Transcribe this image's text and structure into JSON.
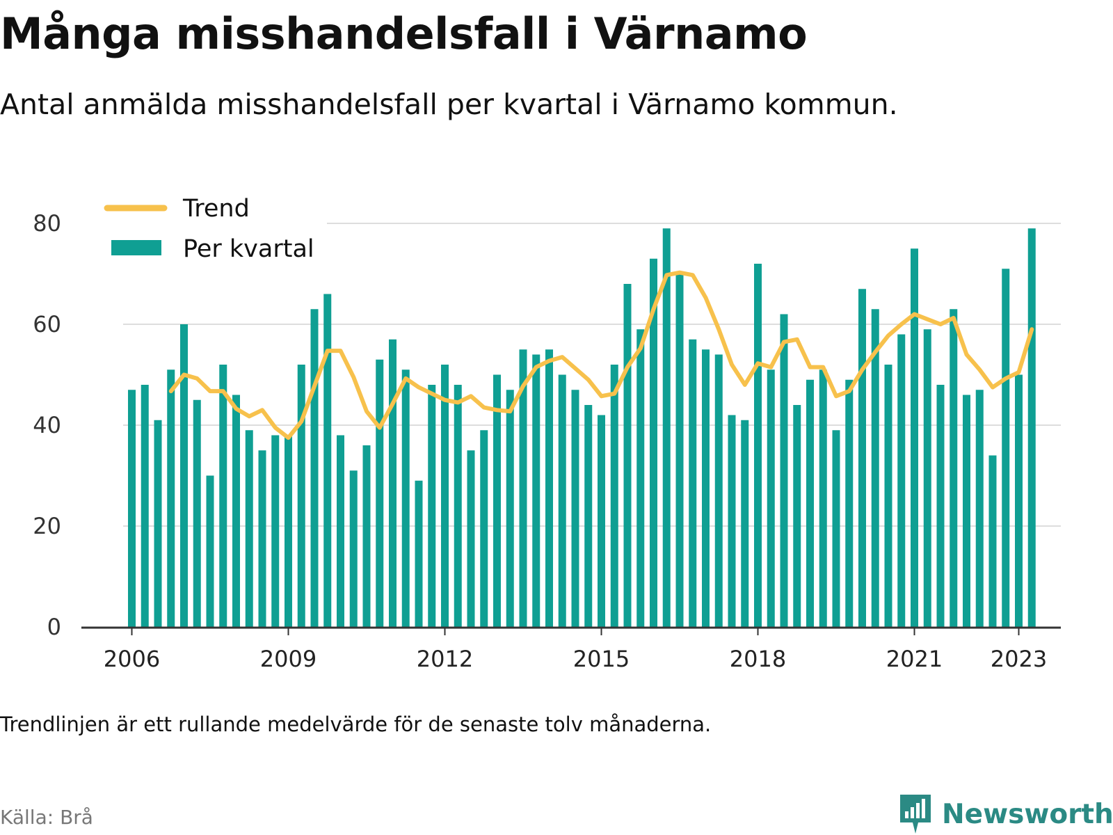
{
  "header": {
    "title": "Många misshandelsfall i Värnamo",
    "subtitle": "Antal anmälda misshandelsfall per kvartal i Värnamo kommun."
  },
  "footer": {
    "note": "Trendlinjen är ett rullande medelvärde för de senaste tolv månaderna.",
    "source": "Källa: Brå",
    "brand": "Newsworthy"
  },
  "colors": {
    "bars": "#0f9f93",
    "trend": "#f7c14c",
    "axis": "#333333",
    "grid": "#dddddd",
    "brand": "#2b8a84"
  },
  "chart_data": {
    "type": "bar",
    "x": [
      "2006-Q1",
      "2006-Q2",
      "2006-Q3",
      "2006-Q4",
      "2007-Q1",
      "2007-Q2",
      "2007-Q3",
      "2007-Q4",
      "2008-Q1",
      "2008-Q2",
      "2008-Q3",
      "2008-Q4",
      "2009-Q1",
      "2009-Q2",
      "2009-Q3",
      "2009-Q4",
      "2010-Q1",
      "2010-Q2",
      "2010-Q3",
      "2010-Q4",
      "2011-Q1",
      "2011-Q2",
      "2011-Q3",
      "2011-Q4",
      "2012-Q1",
      "2012-Q2",
      "2012-Q3",
      "2012-Q4",
      "2013-Q1",
      "2013-Q2",
      "2013-Q3",
      "2013-Q4",
      "2014-Q1",
      "2014-Q2",
      "2014-Q3",
      "2014-Q4",
      "2015-Q1",
      "2015-Q2",
      "2015-Q3",
      "2015-Q4",
      "2016-Q1",
      "2016-Q2",
      "2016-Q3",
      "2016-Q4",
      "2017-Q1",
      "2017-Q2",
      "2017-Q3",
      "2017-Q4",
      "2018-Q1",
      "2018-Q2",
      "2018-Q3",
      "2018-Q4",
      "2019-Q1",
      "2019-Q2",
      "2019-Q3",
      "2019-Q4",
      "2020-Q1",
      "2020-Q2",
      "2020-Q3",
      "2020-Q4",
      "2021-Q1",
      "2021-Q2",
      "2021-Q3",
      "2021-Q4",
      "2022-Q1",
      "2022-Q2",
      "2022-Q3",
      "2022-Q4",
      "2023-Q1",
      "2023-Q2"
    ],
    "series": [
      {
        "name": "Per kvartal",
        "type": "bar",
        "values": [
          47,
          48,
          41,
          51,
          60,
          45,
          30,
          52,
          46,
          39,
          35,
          38,
          38,
          52,
          63,
          66,
          38,
          31,
          36,
          53,
          57,
          51,
          29,
          48,
          52,
          48,
          35,
          39,
          50,
          47,
          55,
          54,
          55,
          50,
          47,
          44,
          42,
          52,
          68,
          59,
          73,
          79,
          70,
          57,
          55,
          54,
          42,
          41,
          72,
          51,
          62,
          44,
          49,
          51,
          39,
          49,
          67,
          63,
          52,
          58,
          75,
          59,
          48,
          63,
          46,
          47,
          34,
          71,
          50,
          79
        ]
      },
      {
        "name": "Trend",
        "type": "line",
        "values": [
          null,
          null,
          null,
          46.75,
          50.0,
          49.25,
          46.75,
          46.75,
          43.25,
          41.75,
          43.0,
          39.5,
          37.5,
          40.75,
          47.75,
          54.75,
          54.75,
          49.5,
          42.75,
          39.5,
          44.25,
          49.25,
          47.5,
          46.25,
          45.0,
          44.5,
          45.75,
          43.5,
          43.0,
          42.75,
          47.75,
          51.5,
          52.75,
          53.5,
          51.25,
          49.0,
          45.75,
          46.25,
          51.5,
          55.25,
          63.0,
          69.75,
          70.25,
          69.75,
          65.25,
          59.0,
          52.0,
          48.0,
          52.25,
          51.5,
          56.5,
          57.0,
          51.5,
          51.5,
          45.75,
          46.75,
          51.0,
          54.5,
          57.75,
          60.0,
          62.0,
          61.0,
          60.0,
          61.25,
          54.0,
          51.0,
          47.5,
          49.25,
          50.5,
          59.0
        ]
      }
    ],
    "y_ticks": [
      0,
      20,
      40,
      60,
      80
    ],
    "x_ticks": [
      "2006",
      "2009",
      "2012",
      "2015",
      "2018",
      "2021",
      "2023"
    ],
    "ylim": [
      0,
      80
    ],
    "grid": true,
    "legend": "top-left"
  }
}
